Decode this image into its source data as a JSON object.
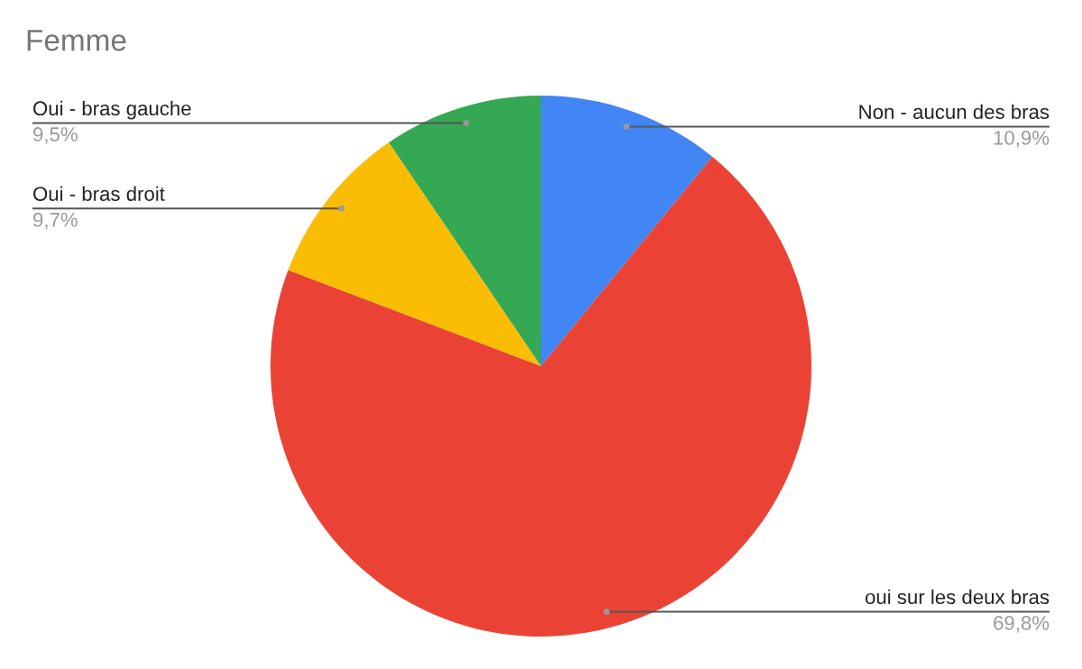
{
  "chart_data": {
    "type": "pie",
    "title": "Femme",
    "categories": [
      "Non - aucun des bras",
      "oui sur les deux bras",
      "Oui - bras droit",
      "Oui - bras gauche"
    ],
    "values": [
      10.9,
      69.8,
      9.7,
      9.5
    ],
    "colors": [
      "#4285f4",
      "#ea4335",
      "#fbbc04",
      "#34a853"
    ],
    "value_labels": [
      "10,9%",
      "69,8%",
      "9,7%",
      "9,5%"
    ],
    "legend": false
  }
}
